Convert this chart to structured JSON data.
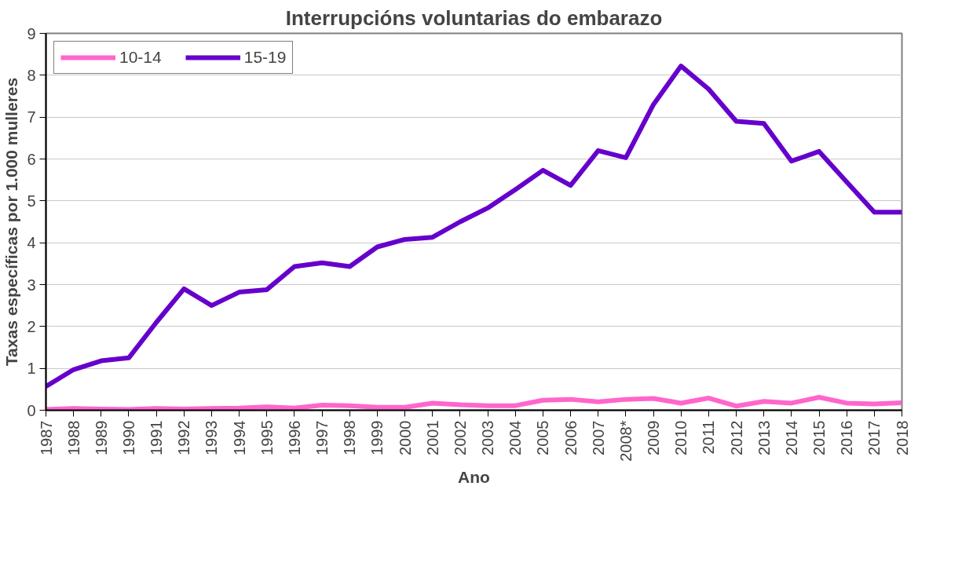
{
  "chart_data": {
    "type": "line",
    "title": "Interrupcións voluntarias do embarazo",
    "xlabel": "Ano",
    "ylabel": "Taxas específicas por 1.000 mulleres",
    "categories": [
      "1987",
      "1988",
      "1989",
      "1990",
      "1991",
      "1992",
      "1993",
      "1994",
      "1995",
      "1996",
      "1997",
      "1998",
      "1999",
      "2000",
      "2001",
      "2002",
      "2003",
      "2004",
      "2005",
      "2006",
      "2007",
      "2008*",
      "2009",
      "2010",
      "2011",
      "2012",
      "2013",
      "2014",
      "2015",
      "2016",
      "2017",
      "2018"
    ],
    "series": [
      {
        "name": "10-14",
        "color": "#ff66cc",
        "values": [
          0.02,
          0.04,
          0.03,
          0.02,
          0.04,
          0.03,
          0.04,
          0.05,
          0.08,
          0.05,
          0.12,
          0.11,
          0.07,
          0.07,
          0.17,
          0.13,
          0.11,
          0.11,
          0.24,
          0.26,
          0.2,
          0.26,
          0.28,
          0.17,
          0.29,
          0.1,
          0.21,
          0.17,
          0.31,
          0.17,
          0.15,
          0.18
        ]
      },
      {
        "name": "15-19",
        "color": "#6600cc",
        "values": [
          0.57,
          0.97,
          1.18,
          1.25,
          2.1,
          2.9,
          2.5,
          2.82,
          2.88,
          3.43,
          3.52,
          3.43,
          3.9,
          4.08,
          4.13,
          4.5,
          4.83,
          5.27,
          5.73,
          5.37,
          6.2,
          6.03,
          7.3,
          8.22,
          7.67,
          6.9,
          6.85,
          5.95,
          6.18,
          5.45,
          4.73,
          4.73
        ]
      }
    ],
    "ylim": [
      0,
      9
    ],
    "yticks": [
      0,
      1,
      2,
      3,
      4,
      5,
      6,
      7,
      8,
      9
    ],
    "grid": "y",
    "legend": "top left",
    "marker": "none",
    "line_style": "solid"
  }
}
